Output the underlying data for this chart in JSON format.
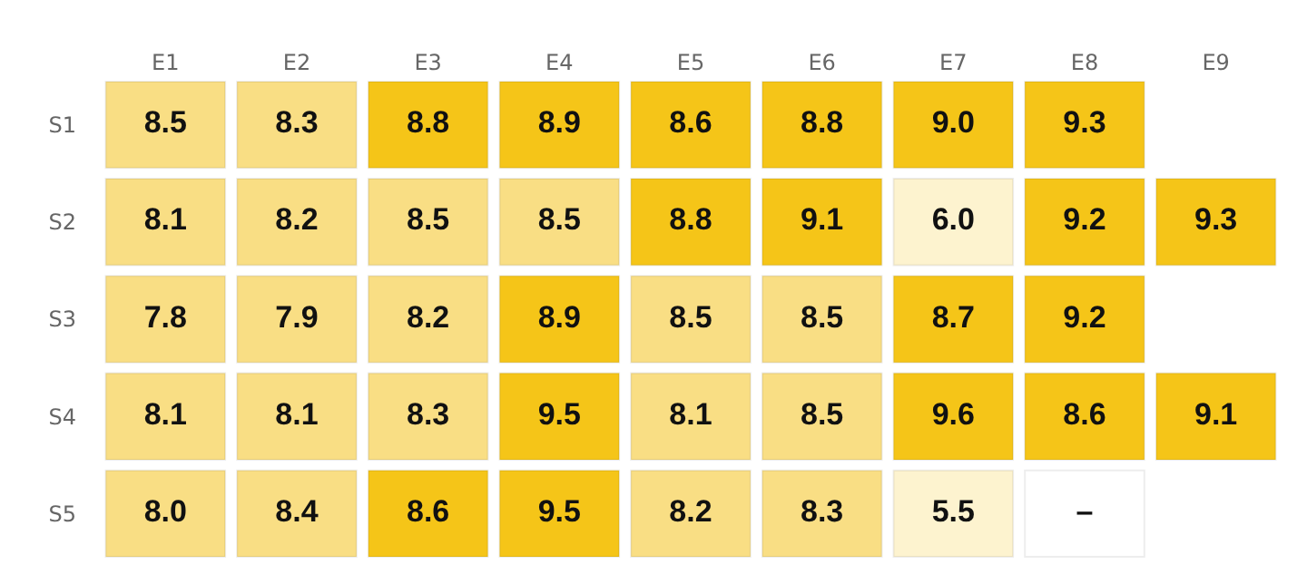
{
  "chart_data": {
    "type": "heatmap",
    "categories": [
      "E1",
      "E2",
      "E3",
      "E4",
      "E5",
      "E6",
      "E7",
      "E8",
      "E9"
    ],
    "y_categories": [
      "S1",
      "S2",
      "S3",
      "S4",
      "S5"
    ],
    "cells": [
      [
        8.5,
        8.3,
        8.8,
        8.9,
        8.6,
        8.8,
        9.0,
        9.3,
        null
      ],
      [
        8.1,
        8.2,
        8.5,
        8.5,
        8.8,
        9.1,
        6.0,
        9.2,
        9.3
      ],
      [
        7.8,
        7.9,
        8.2,
        8.9,
        8.5,
        8.5,
        8.7,
        9.2,
        null
      ],
      [
        8.1,
        8.1,
        8.3,
        9.5,
        8.1,
        8.5,
        9.6,
        8.6,
        9.1
      ],
      [
        8.0,
        8.4,
        8.6,
        9.5,
        8.2,
        8.3,
        5.5,
        null,
        null
      ]
    ],
    "cell_labels": [
      [
        "8.5",
        "8.3",
        "8.8",
        "8.9",
        "8.6",
        "8.8",
        "9.0",
        "9.3",
        null
      ],
      [
        "8.1",
        "8.2",
        "8.5",
        "8.5",
        "8.8",
        "9.1",
        "6.0",
        "9.2",
        "9.3"
      ],
      [
        "7.8",
        "7.9",
        "8.2",
        "8.9",
        "8.5",
        "8.5",
        "8.7",
        "9.2",
        null
      ],
      [
        "8.1",
        "8.1",
        "8.3",
        "9.5",
        "8.1",
        "8.5",
        "9.6",
        "8.6",
        "9.1"
      ],
      [
        "8.0",
        "8.4",
        "8.6",
        "9.5",
        "8.2",
        "8.3",
        "5.5",
        "–",
        null
      ]
    ],
    "colors": [
      [
        "#f9de84",
        "#f9de84",
        "#f5c518",
        "#f5c518",
        "#f5c518",
        "#f5c518",
        "#f5c518",
        "#f5c518",
        null
      ],
      [
        "#f9de84",
        "#f9de84",
        "#f9de84",
        "#f9de84",
        "#f5c518",
        "#f5c518",
        "#fdf3cf",
        "#f5c518",
        "#f5c518"
      ],
      [
        "#f9de84",
        "#f9de84",
        "#f9de84",
        "#f5c518",
        "#f9de84",
        "#f9de84",
        "#f5c518",
        "#f5c518",
        null
      ],
      [
        "#f9de84",
        "#f9de84",
        "#f9de84",
        "#f5c518",
        "#f9de84",
        "#f9de84",
        "#f5c518",
        "#f5c518",
        "#f5c518"
      ],
      [
        "#f9de84",
        "#f9de84",
        "#f5c518",
        "#f5c518",
        "#f9de84",
        "#f9de84",
        "#fdf3cf",
        "#ffffff",
        null
      ]
    ]
  }
}
